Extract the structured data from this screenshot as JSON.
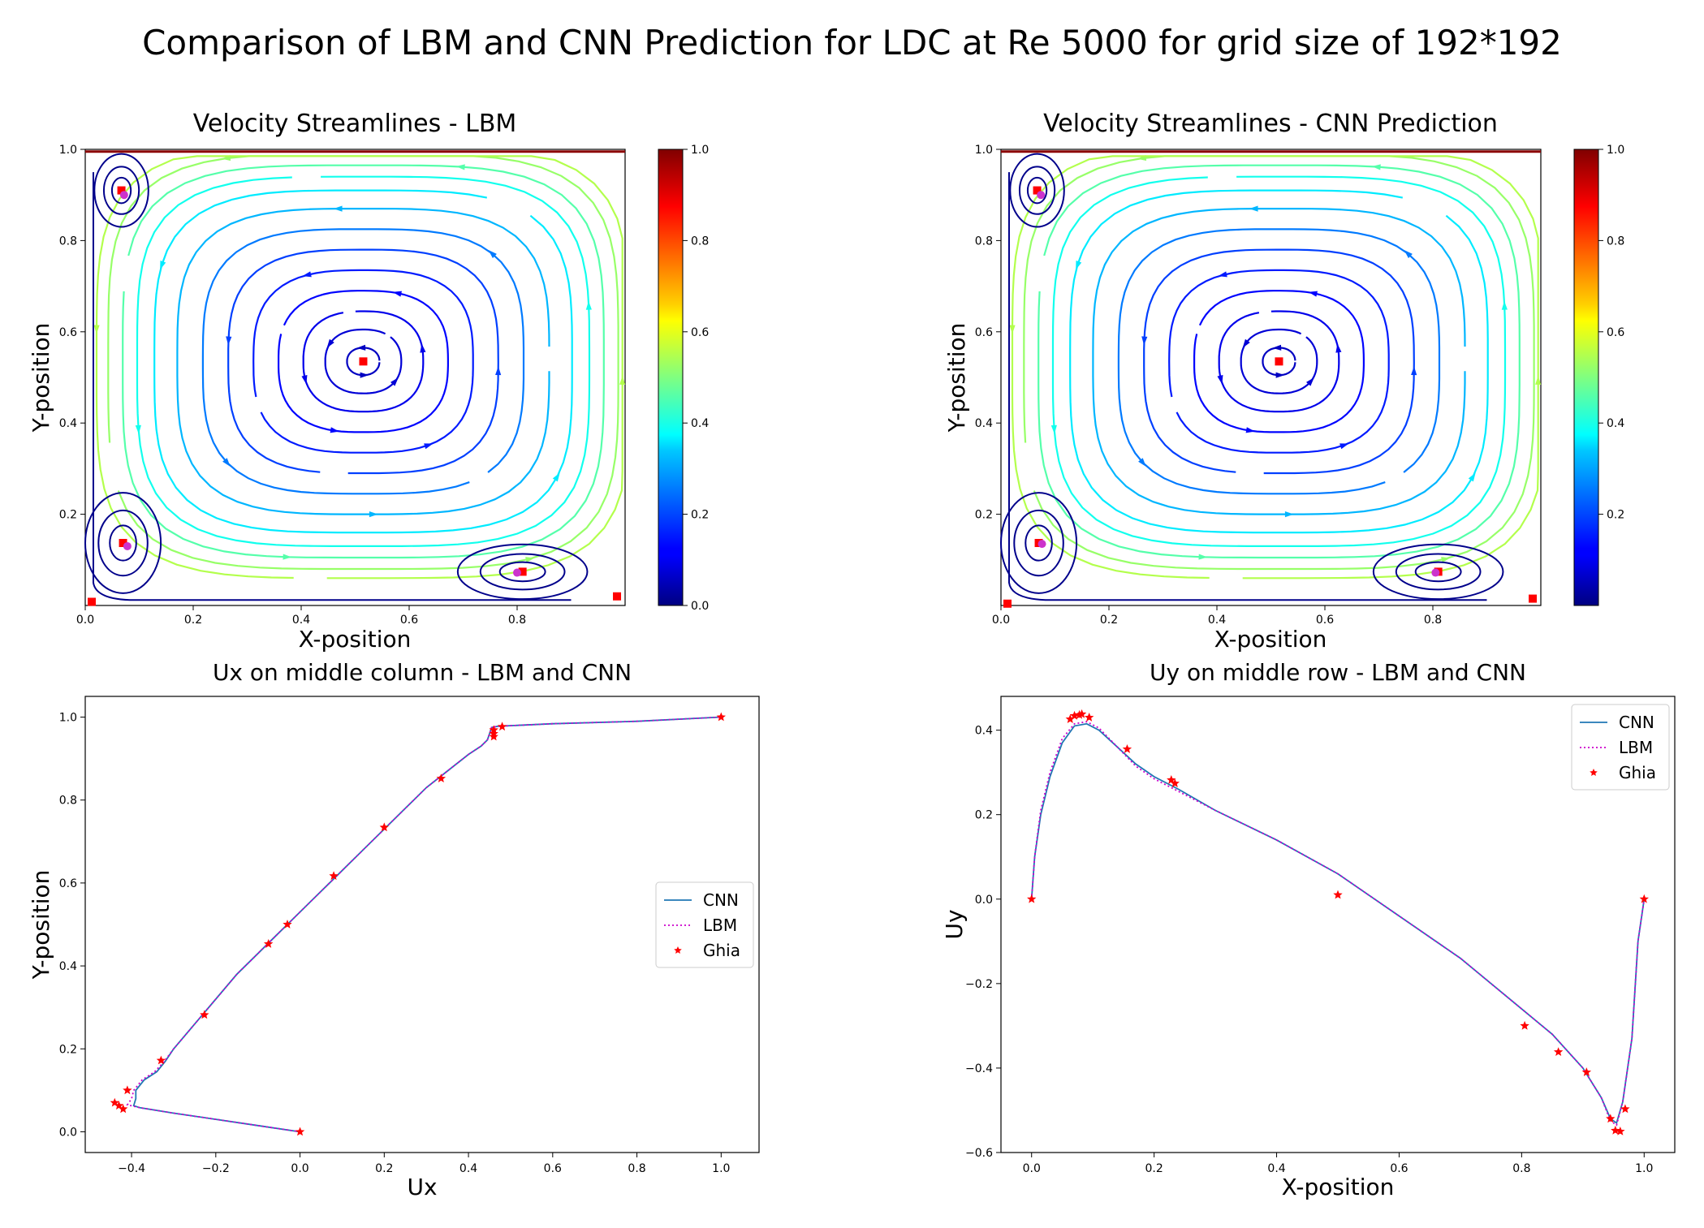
{
  "title": "Comparison of LBM and CNN Prediction for LDC at Re 5000 for grid size of 192*192",
  "colors": {
    "cnn": "#1f77b4",
    "lbm": "#cc00cc",
    "ghia": "#ff0000",
    "vortex_lbm": "#ff0000",
    "vortex_ref": "#cc33cc"
  },
  "chart_data": [
    {
      "type": "streamplot",
      "title": "Velocity Streamlines - LBM",
      "xlabel": "X-position",
      "ylabel": "Y-position",
      "xlim": [
        0,
        1
      ],
      "ylim": [
        0,
        1
      ],
      "xticks": [
        "0.0",
        "0.2",
        "0.4",
        "0.6",
        "0.8"
      ],
      "yticks": [
        "0.2",
        "0.4",
        "0.6",
        "0.8",
        "1.0"
      ],
      "colorbar": {
        "range": [
          0,
          1
        ],
        "ticks": [
          "0.0",
          "0.2",
          "0.4",
          "0.6",
          "0.8",
          "1.0"
        ],
        "colormap": "jet"
      },
      "vortex_centers": [
        {
          "x": 0.515,
          "y": 0.535
        },
        {
          "x": 0.067,
          "y": 0.91
        },
        {
          "x": 0.07,
          "y": 0.137
        },
        {
          "x": 0.81,
          "y": 0.074
        },
        {
          "x": 0.012,
          "y": 0.008
        },
        {
          "x": 0.985,
          "y": 0.02
        }
      ],
      "reference_points": [
        {
          "x": 0.072,
          "y": 0.9
        },
        {
          "x": 0.078,
          "y": 0.13
        },
        {
          "x": 0.8,
          "y": 0.072
        }
      ],
      "legend": "none"
    },
    {
      "type": "streamplot",
      "title": "Velocity Streamlines - CNN Prediction",
      "xlabel": "X-position",
      "ylabel": "Y-position",
      "xlim": [
        0,
        1
      ],
      "ylim": [
        0,
        1
      ],
      "xticks": [
        "0.0",
        "0.2",
        "0.4",
        "0.6",
        "0.8"
      ],
      "yticks": [
        "0.2",
        "0.4",
        "0.6",
        "0.8",
        "1.0"
      ],
      "colorbar": {
        "range": [
          0,
          1
        ],
        "ticks": [
          "0.2",
          "0.4",
          "0.6",
          "0.8",
          "1.0"
        ],
        "colormap": "jet"
      },
      "vortex_centers": [
        {
          "x": 0.515,
          "y": 0.535
        },
        {
          "x": 0.067,
          "y": 0.91
        },
        {
          "x": 0.07,
          "y": 0.137
        },
        {
          "x": 0.81,
          "y": 0.074
        },
        {
          "x": 0.012,
          "y": 0.004
        },
        {
          "x": 0.985,
          "y": 0.015
        }
      ],
      "reference_points": [
        {
          "x": 0.074,
          "y": 0.9
        },
        {
          "x": 0.076,
          "y": 0.135
        },
        {
          "x": 0.805,
          "y": 0.072
        }
      ],
      "legend": "none"
    },
    {
      "type": "line",
      "title": "Ux on middle column - LBM and CNN",
      "xlabel": "Ux",
      "ylabel": "Y-position",
      "xlim": [
        -0.51,
        1.09
      ],
      "ylim": [
        -0.05,
        1.05
      ],
      "xticks": [
        "−0.4",
        "−0.2",
        "0.0",
        "0.2",
        "0.4",
        "0.6",
        "0.8",
        "1.0"
      ],
      "yticks": [
        "0.0",
        "0.2",
        "0.4",
        "0.6",
        "0.8",
        "1.0"
      ],
      "legend_position": "center-right",
      "series": [
        {
          "name": "CNN",
          "style": "solid",
          "points": [
            [
              0.0,
              0.0
            ],
            [
              -0.1,
              0.015
            ],
            [
              -0.2,
              0.03
            ],
            [
              -0.3,
              0.045
            ],
            [
              -0.38,
              0.058
            ],
            [
              -0.395,
              0.063
            ],
            [
              -0.39,
              0.08
            ],
            [
              -0.39,
              0.1
            ],
            [
              -0.37,
              0.125
            ],
            [
              -0.34,
              0.145
            ],
            [
              -0.32,
              0.17
            ],
            [
              -0.3,
              0.2
            ],
            [
              -0.25,
              0.26
            ],
            [
              -0.2,
              0.32
            ],
            [
              -0.15,
              0.38
            ],
            [
              -0.1,
              0.43
            ],
            [
              -0.06,
              0.47
            ],
            [
              -0.02,
              0.51
            ],
            [
              0.02,
              0.55
            ],
            [
              0.08,
              0.61
            ],
            [
              0.15,
              0.68
            ],
            [
              0.2,
              0.73
            ],
            [
              0.25,
              0.78
            ],
            [
              0.3,
              0.83
            ],
            [
              0.35,
              0.87
            ],
            [
              0.4,
              0.91
            ],
            [
              0.43,
              0.93
            ],
            [
              0.445,
              0.945
            ],
            [
              0.45,
              0.96
            ],
            [
              0.455,
              0.975
            ],
            [
              0.47,
              0.978
            ],
            [
              0.6,
              0.984
            ],
            [
              0.8,
              0.99
            ],
            [
              1.0,
              1.0
            ]
          ]
        },
        {
          "name": "LBM",
          "style": "dotted",
          "points": [
            [
              0.0,
              0.0
            ],
            [
              -0.1,
              0.015
            ],
            [
              -0.2,
              0.03
            ],
            [
              -0.3,
              0.045
            ],
            [
              -0.38,
              0.058
            ],
            [
              -0.41,
              0.065
            ],
            [
              -0.4,
              0.08
            ],
            [
              -0.395,
              0.1
            ],
            [
              -0.375,
              0.125
            ],
            [
              -0.345,
              0.145
            ],
            [
              -0.322,
              0.17
            ],
            [
              -0.3,
              0.2
            ],
            [
              -0.25,
              0.26
            ],
            [
              -0.2,
              0.32
            ],
            [
              -0.15,
              0.38
            ],
            [
              -0.1,
              0.43
            ],
            [
              -0.06,
              0.47
            ],
            [
              -0.02,
              0.51
            ],
            [
              0.02,
              0.55
            ],
            [
              0.08,
              0.61
            ],
            [
              0.15,
              0.68
            ],
            [
              0.2,
              0.73
            ],
            [
              0.25,
              0.78
            ],
            [
              0.3,
              0.83
            ],
            [
              0.35,
              0.87
            ],
            [
              0.4,
              0.91
            ],
            [
              0.43,
              0.93
            ],
            [
              0.445,
              0.945
            ],
            [
              0.45,
              0.96
            ],
            [
              0.455,
              0.975
            ],
            [
              0.47,
              0.978
            ],
            [
              0.6,
              0.984
            ],
            [
              0.8,
              0.99
            ],
            [
              1.0,
              1.0
            ]
          ]
        },
        {
          "name": "Ghia",
          "style": "marker",
          "points": [
            [
              0.0,
              0.0
            ],
            [
              -0.42,
              0.055
            ],
            [
              -0.43,
              0.063
            ],
            [
              -0.44,
              0.07
            ],
            [
              -0.41,
              0.1
            ],
            [
              -0.33,
              0.172
            ],
            [
              -0.227,
              0.282
            ],
            [
              -0.075,
              0.453
            ],
            [
              -0.03,
              0.5
            ],
            [
              0.08,
              0.617
            ],
            [
              0.2,
              0.734
            ],
            [
              0.335,
              0.852
            ],
            [
              0.46,
              0.953
            ],
            [
              0.46,
              0.96
            ],
            [
              0.46,
              0.969
            ],
            [
              0.48,
              0.977
            ],
            [
              1.0,
              1.0
            ]
          ]
        }
      ]
    },
    {
      "type": "line",
      "title": "Uy on middle row - LBM and CNN",
      "xlabel": "X-position",
      "ylabel": "Uy",
      "xlim": [
        -0.05,
        1.05
      ],
      "ylim": [
        -0.6,
        0.48
      ],
      "xticks": [
        "0.0",
        "0.2",
        "0.4",
        "0.6",
        "0.8",
        "1.0"
      ],
      "yticks": [
        "−0.6",
        "−0.4",
        "−0.2",
        "0.0",
        "0.2",
        "0.4"
      ],
      "legend_position": "top-right",
      "series": [
        {
          "name": "CNN",
          "style": "solid",
          "points": [
            [
              0.0,
              0.0
            ],
            [
              0.005,
              0.1
            ],
            [
              0.015,
              0.2
            ],
            [
              0.03,
              0.29
            ],
            [
              0.05,
              0.37
            ],
            [
              0.07,
              0.41
            ],
            [
              0.09,
              0.415
            ],
            [
              0.11,
              0.4
            ],
            [
              0.14,
              0.36
            ],
            [
              0.17,
              0.32
            ],
            [
              0.2,
              0.29
            ],
            [
              0.24,
              0.26
            ],
            [
              0.3,
              0.21
            ],
            [
              0.4,
              0.14
            ],
            [
              0.5,
              0.06
            ],
            [
              0.6,
              -0.04
            ],
            [
              0.7,
              -0.14
            ],
            [
              0.8,
              -0.26
            ],
            [
              0.85,
              -0.32
            ],
            [
              0.9,
              -0.4
            ],
            [
              0.93,
              -0.47
            ],
            [
              0.945,
              -0.52
            ],
            [
              0.955,
              -0.53
            ],
            [
              0.965,
              -0.48
            ],
            [
              0.98,
              -0.33
            ],
            [
              0.99,
              -0.1
            ],
            [
              1.0,
              0.0
            ]
          ]
        },
        {
          "name": "LBM",
          "style": "dotted",
          "points": [
            [
              0.0,
              0.0
            ],
            [
              0.005,
              0.1
            ],
            [
              0.015,
              0.21
            ],
            [
              0.03,
              0.3
            ],
            [
              0.05,
              0.38
            ],
            [
              0.07,
              0.415
            ],
            [
              0.09,
              0.42
            ],
            [
              0.11,
              0.405
            ],
            [
              0.14,
              0.36
            ],
            [
              0.17,
              0.315
            ],
            [
              0.2,
              0.285
            ],
            [
              0.24,
              0.255
            ],
            [
              0.3,
              0.21
            ],
            [
              0.4,
              0.14
            ],
            [
              0.5,
              0.06
            ],
            [
              0.6,
              -0.04
            ],
            [
              0.7,
              -0.14
            ],
            [
              0.8,
              -0.26
            ],
            [
              0.85,
              -0.32
            ],
            [
              0.9,
              -0.4
            ],
            [
              0.93,
              -0.47
            ],
            [
              0.945,
              -0.525
            ],
            [
              0.955,
              -0.535
            ],
            [
              0.965,
              -0.48
            ],
            [
              0.98,
              -0.33
            ],
            [
              0.99,
              -0.1
            ],
            [
              1.0,
              0.0
            ]
          ]
        },
        {
          "name": "Ghia",
          "style": "marker",
          "points": [
            [
              0.0,
              0.0
            ],
            [
              0.063,
              0.426
            ],
            [
              0.07,
              0.434
            ],
            [
              0.078,
              0.436
            ],
            [
              0.082,
              0.438
            ],
            [
              0.094,
              0.43
            ],
            [
              0.156,
              0.355
            ],
            [
              0.228,
              0.282
            ],
            [
              0.234,
              0.274
            ],
            [
              0.5,
              0.01
            ],
            [
              0.805,
              -0.3
            ],
            [
              0.86,
              -0.362
            ],
            [
              0.906,
              -0.41
            ],
            [
              0.945,
              -0.52
            ],
            [
              0.953,
              -0.548
            ],
            [
              0.961,
              -0.55
            ],
            [
              0.969,
              -0.497
            ],
            [
              1.0,
              0.0
            ]
          ]
        }
      ]
    }
  ]
}
